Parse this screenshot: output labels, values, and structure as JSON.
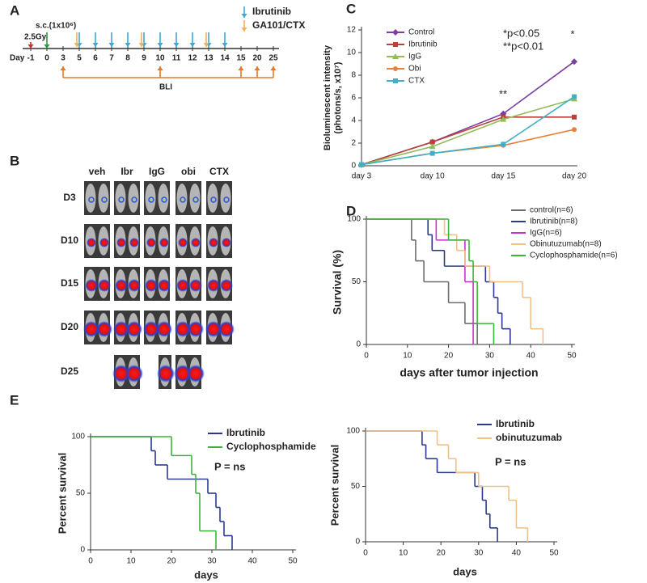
{
  "panel_labels": [
    "A",
    "B",
    "C",
    "D",
    "E"
  ],
  "timeline": {
    "day_label": "Day",
    "days": [
      -1,
      0,
      3,
      5,
      6,
      7,
      8,
      9,
      10,
      11,
      12,
      13,
      14,
      15,
      20,
      25
    ],
    "irradiation": {
      "label": "2.5Gy",
      "day": -1,
      "color": "#d42a2a"
    },
    "injection": {
      "label": "s.c.(1x10⁶)",
      "day": 0,
      "color": "#2a9a3a"
    },
    "treatments": [
      {
        "name": "Ibrutinib",
        "color": "#3fa6d8",
        "text_color": "#2b3a8f",
        "days": [
          5,
          6,
          7,
          8,
          9,
          10,
          11,
          12,
          13,
          14
        ]
      },
      {
        "name": "GA101/CTX",
        "color": "#f2b05a",
        "text_color": "#f2b05a",
        "days": [
          5,
          9,
          13
        ]
      }
    ],
    "imaging": {
      "label": "BLI",
      "color": "#e07a2e",
      "days": [
        3,
        10,
        15,
        20,
        25
      ]
    }
  },
  "imaging_panel": {
    "groups": [
      "veh",
      "Ibr",
      "IgG",
      "obi",
      "CTX"
    ],
    "timepoints": [
      "D3",
      "D10",
      "D15",
      "D20",
      "D25"
    ]
  },
  "chart_data": [
    {
      "type": "line",
      "ylabel": [
        "Bioluminescent intensity",
        "(photons/s, x10⁷)"
      ],
      "categories": [
        "day 3",
        "day 10",
        "day 15",
        "day 20"
      ],
      "ylim": [
        0,
        12
      ],
      "yticks": [
        0,
        2,
        4,
        6,
        8,
        10,
        12
      ],
      "series": [
        {
          "name": "Control",
          "color": "#7a3fa0",
          "marker": "diamond",
          "values": [
            0.1,
            2.1,
            4.6,
            9.2
          ]
        },
        {
          "name": "Ibrutinib",
          "color": "#b8413c",
          "marker": "square",
          "values": [
            0.1,
            2.1,
            4.3,
            4.3
          ]
        },
        {
          "name": "IgG",
          "color": "#93bb5a",
          "marker": "triangle",
          "values": [
            0.1,
            1.7,
            4.1,
            5.9
          ]
        },
        {
          "name": "Obi",
          "color": "#e8803a",
          "marker": "circle",
          "values": [
            0.1,
            1.1,
            1.8,
            3.2
          ]
        },
        {
          "name": "CTX",
          "color": "#3fb0c8",
          "marker": "square",
          "values": [
            0.1,
            1.1,
            1.9,
            6.1
          ]
        }
      ],
      "annotations": [
        "*p<0.05",
        "**p<0.01",
        "**",
        "*"
      ]
    },
    {
      "type": "survival",
      "xlabel": "days after tumor injection",
      "ylabel": "Survival (%)",
      "xlim": [
        0,
        50
      ],
      "xticks": [
        0,
        10,
        20,
        30,
        40,
        50
      ],
      "ylim": [
        0,
        100
      ],
      "yticks": [
        0,
        50,
        100
      ],
      "series": [
        {
          "name": "control(n=6)",
          "color": "#6d6d6d",
          "x": [
            0,
            11,
            12,
            14,
            20,
            24,
            27
          ],
          "values": [
            100,
            83.3,
            66.7,
            50,
            33.3,
            16.7,
            0
          ]
        },
        {
          "name": "Ibrutinib(n=8)",
          "color": "#2b3a8f",
          "x": [
            0,
            15,
            16,
            19,
            29,
            31,
            32,
            33,
            35
          ],
          "values": [
            100,
            87.5,
            75,
            62.5,
            50,
            37.5,
            25,
            12.5,
            0
          ]
        },
        {
          "name": "IgG(n=6)",
          "color": "#c832c8",
          "x": [
            0,
            17,
            24,
            26
          ],
          "values": [
            100,
            83.3,
            50,
            0
          ]
        },
        {
          "name": "Obinutuzumab(n=8)",
          "color": "#f0c088",
          "x": [
            0,
            19,
            22,
            24,
            30,
            38,
            40,
            43
          ],
          "values": [
            100,
            87.5,
            75,
            62.5,
            50,
            37.5,
            12.5,
            0
          ]
        },
        {
          "name": "Cyclophosphamide(n=6)",
          "color": "#3cb43c",
          "x": [
            0,
            20,
            25,
            26,
            27,
            31
          ],
          "values": [
            100,
            83.3,
            66.7,
            50,
            16.7,
            0
          ]
        }
      ]
    },
    {
      "type": "survival",
      "xlabel": "days",
      "ylabel": "Percent survival",
      "xlim": [
        0,
        50
      ],
      "xticks": [
        0,
        10,
        20,
        30,
        40,
        50
      ],
      "ylim": [
        0,
        100
      ],
      "yticks": [
        0,
        50,
        100
      ],
      "annotations": [
        "P = ns"
      ],
      "series": [
        {
          "name": "Ibrutinib",
          "color": "#2b3a8f",
          "x": [
            0,
            15,
            16,
            19,
            29,
            31,
            32,
            33,
            35
          ],
          "values": [
            100,
            87.5,
            75,
            62.5,
            50,
            37.5,
            25,
            12.5,
            0
          ]
        },
        {
          "name": "Cyclophosphamide",
          "color": "#3cb43c",
          "x": [
            0,
            20,
            25,
            26,
            27,
            31
          ],
          "values": [
            100,
            83.3,
            66.7,
            50,
            16.7,
            0
          ]
        }
      ]
    },
    {
      "type": "survival",
      "xlabel": "days",
      "ylabel": "Percent survival",
      "xlim": [
        0,
        50
      ],
      "xticks": [
        0,
        10,
        20,
        30,
        40,
        50
      ],
      "ylim": [
        0,
        100
      ],
      "yticks": [
        0,
        50,
        100
      ],
      "annotations": [
        "P = ns"
      ],
      "series": [
        {
          "name": "Ibrutinib",
          "color": "#2b3a8f",
          "x": [
            0,
            15,
            16,
            19,
            29,
            31,
            32,
            33,
            35
          ],
          "values": [
            100,
            87.5,
            75,
            62.5,
            50,
            37.5,
            25,
            12.5,
            0
          ]
        },
        {
          "name": "obinutuzumab",
          "color": "#f0c088",
          "x": [
            0,
            19,
            22,
            24,
            30,
            38,
            40,
            43
          ],
          "values": [
            100,
            87.5,
            75,
            62.5,
            50,
            37.5,
            12.5,
            0
          ]
        }
      ]
    }
  ]
}
